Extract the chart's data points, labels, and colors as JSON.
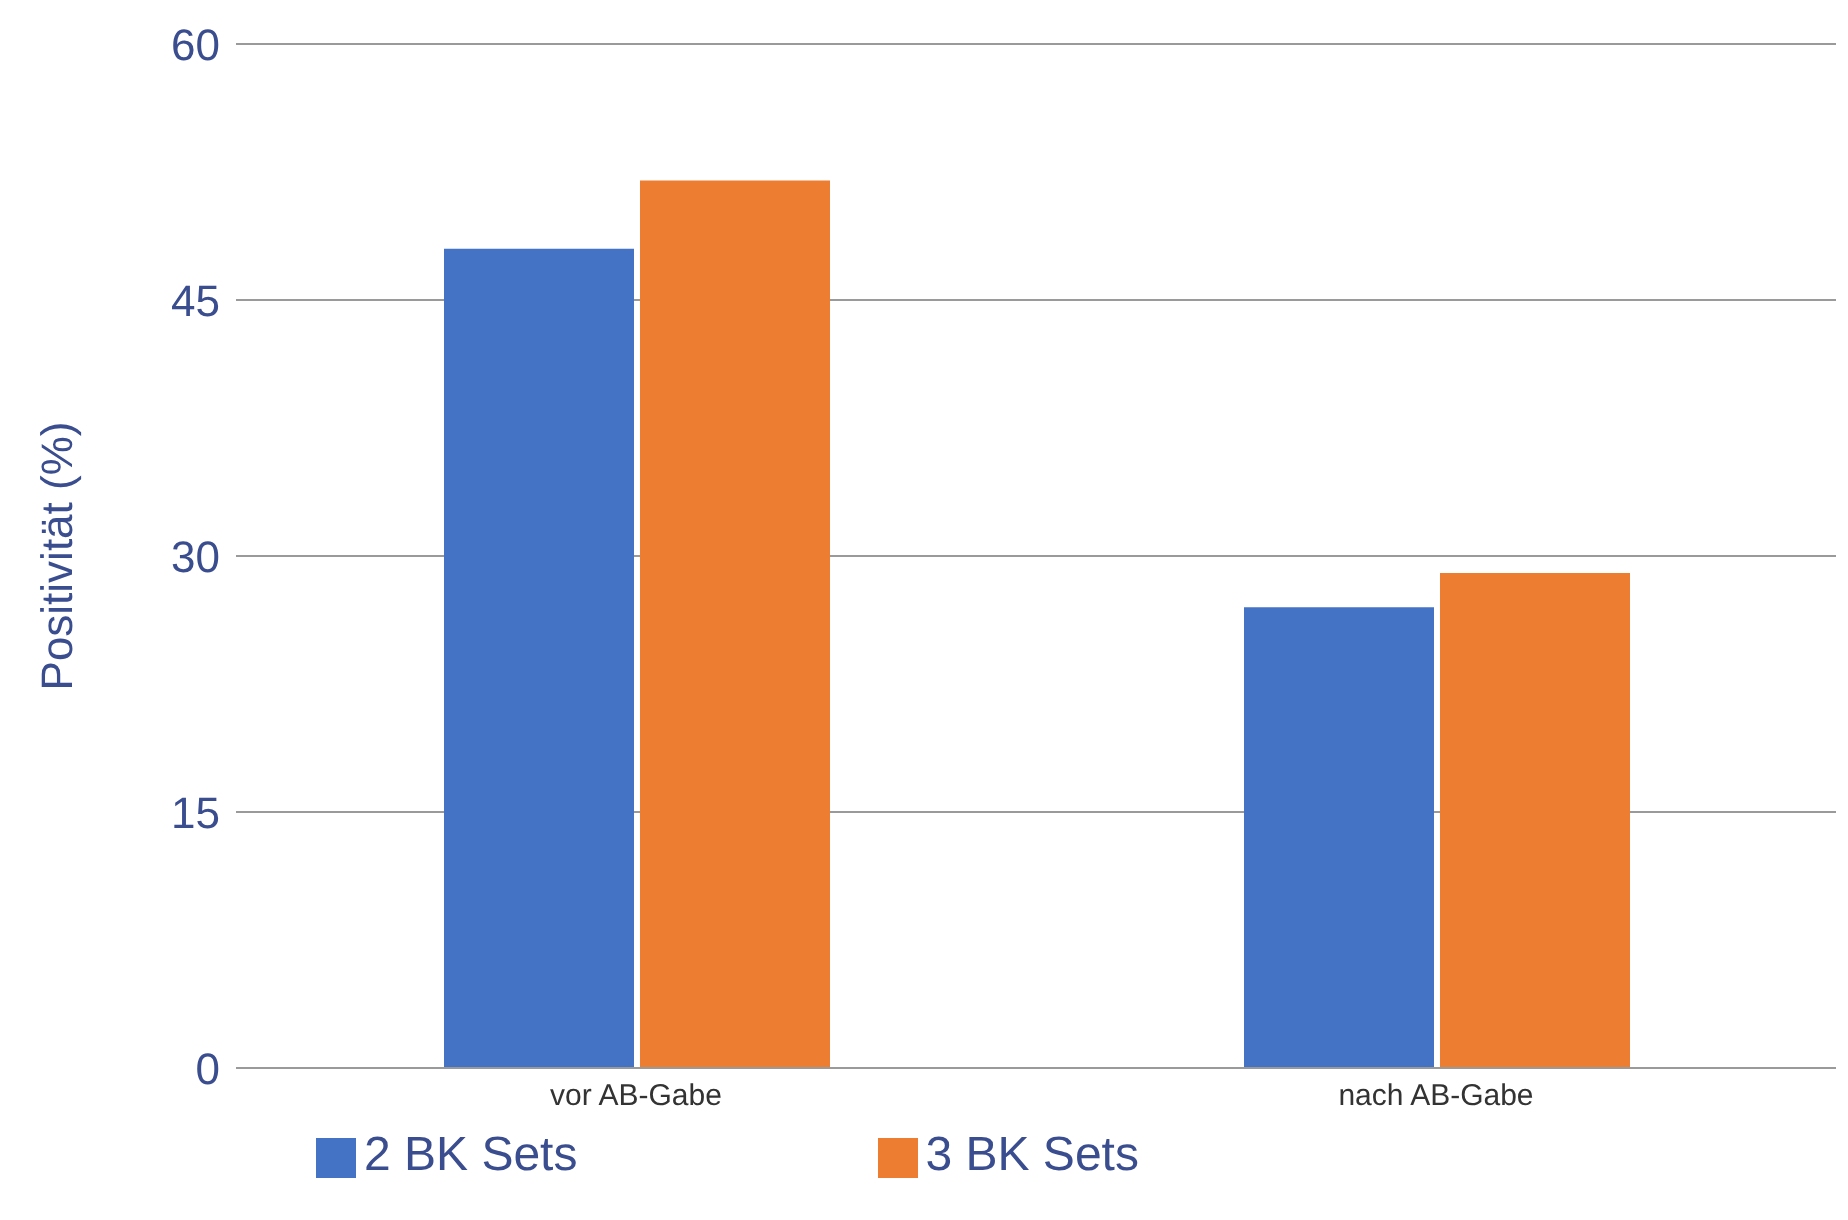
{
  "chart_data": {
    "type": "bar",
    "ylabel": "Positivität (%)",
    "categories": [
      "vor AB-Gabe",
      "nach AB-Gabe"
    ],
    "series": [
      {
        "name": "2 BK Sets",
        "color": "#4472c4",
        "values": [
          48,
          27
        ]
      },
      {
        "name": "3 BK Sets",
        "color": "#ed7d31",
        "values": [
          52,
          29
        ]
      }
    ],
    "ylim": [
      0,
      60
    ],
    "yticks": [
      0,
      15,
      30,
      45,
      60
    ],
    "grid": "y",
    "legend": "bottom left"
  }
}
